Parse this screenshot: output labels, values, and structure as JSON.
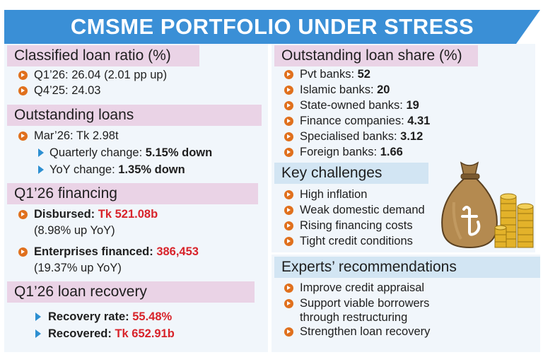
{
  "banner": {
    "title": "CMSME PORTFOLIO UNDER STRESS"
  },
  "classified": {
    "heading": "Classified loan ratio (%)",
    "q1_label": "Q1’26: 26.04",
    "q1_note": " (2.01 pp up)",
    "q4_label": "Q4’25: 24.03"
  },
  "outstanding": {
    "heading": "Outstanding loans",
    "total": "Mar’26: Tk 2.98t",
    "quarterly_label": "Quarterly change: ",
    "quarterly_value": "5.15% down",
    "yoy_label": "YoY change: ",
    "yoy_value": "1.35% down"
  },
  "financing": {
    "heading": "Q1’26 financing",
    "disbursed_label": "Disbursed: ",
    "disbursed_value": "Tk 521.08b",
    "disbursed_note": "(8.98% up YoY)",
    "enterprises_label": "Enterprises financed: ",
    "enterprises_value": "386,453",
    "enterprises_note": "(19.37% up YoY)"
  },
  "recovery": {
    "heading": "Q1’26 loan recovery",
    "rate_label": "Recovery rate: ",
    "rate_value": "55.48%",
    "recovered_label": "Recovered: ",
    "recovered_value": "Tk 652.91b"
  },
  "share": {
    "heading": "Outstanding loan share (%)",
    "items": [
      {
        "label": "Pvt banks: ",
        "value": "52"
      },
      {
        "label": "Islamic banks: ",
        "value": "20"
      },
      {
        "label": "State-owned banks: ",
        "value": "19"
      },
      {
        "label": "Finance companies: ",
        "value": "4.31"
      },
      {
        "label": "Specialised banks: ",
        "value": "3.12"
      },
      {
        "label": "Foreign banks: ",
        "value": "1.66"
      }
    ]
  },
  "challenges": {
    "heading": "Key challenges",
    "items": [
      "High inflation",
      "Weak domestic demand",
      "Rising financing costs",
      "Tight credit conditions"
    ]
  },
  "recommendations": {
    "heading": "Experts’ recommendations",
    "items": [
      "Improve credit appraisal",
      "Support viable borrowers",
      "through restructuring",
      "Strengthen loan recovery"
    ]
  },
  "colors": {
    "banner": "#3a8fd6",
    "bullet": "#e0701d",
    "highlight": "#d8232a",
    "pink_header": "#ead3e6",
    "blue_header": "#d2e5f3",
    "panel": "#f1f6fb"
  },
  "icons": [
    "money-bag-icon",
    "coin-stack-icon",
    "taka-symbol-icon"
  ]
}
